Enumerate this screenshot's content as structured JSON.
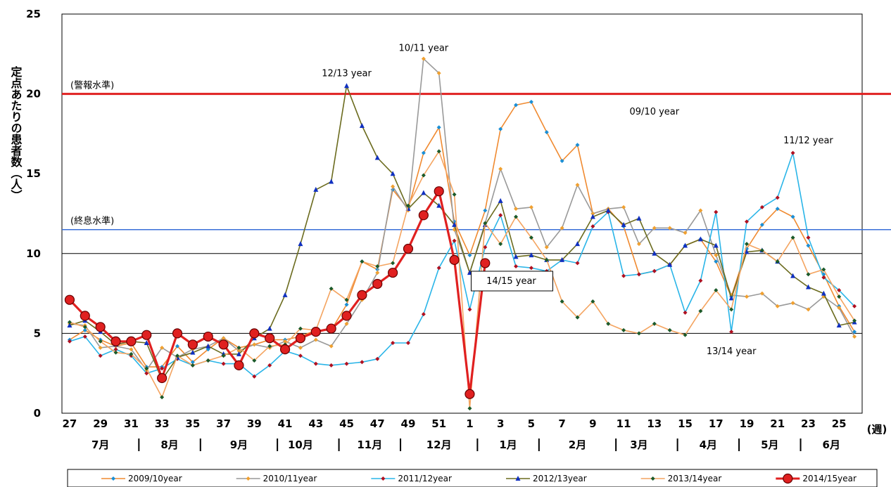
{
  "chart_data": {
    "type": "line",
    "title": "",
    "ylabel": "定点あたりの患者数（人）",
    "x_unit_label": "(週)",
    "ylim": [
      0,
      25
    ],
    "y_ticks": [
      "0",
      "5",
      "10",
      "15",
      "20",
      "25"
    ],
    "x_tick_labels": [
      "27",
      "29",
      "31",
      "33",
      "35",
      "37",
      "39",
      "41",
      "43",
      "45",
      "47",
      "49",
      "51",
      "1",
      "3",
      "5",
      "7",
      "9",
      "11",
      "13",
      "15",
      "17",
      "19",
      "21",
      "23",
      "25"
    ],
    "months": [
      "7月",
      "8月",
      "9月",
      "10月",
      "11月",
      "12月",
      "1月",
      "2月",
      "3月",
      "4月",
      "5月",
      "6月"
    ],
    "reference_lines": [
      {
        "label": "(警報水準)",
        "value": 20,
        "color": "#e02020"
      },
      {
        "label": "(終息水準)",
        "value": 11.5,
        "color": "#3a6fd8"
      }
    ],
    "weeks": [
      "27",
      "28",
      "29",
      "30",
      "31",
      "32",
      "33",
      "34",
      "35",
      "36",
      "37",
      "38",
      "39",
      "40",
      "41",
      "42",
      "43",
      "44",
      "45",
      "46",
      "47",
      "48",
      "49",
      "50",
      "51",
      "52",
      "1",
      "2",
      "3",
      "4",
      "5",
      "6",
      "7",
      "8",
      "9",
      "10",
      "11",
      "12",
      "13",
      "14",
      "15",
      "16",
      "17",
      "18",
      "19",
      "20",
      "21",
      "22",
      "23",
      "24",
      "25",
      "26"
    ],
    "series": [
      {
        "name": "2009/10year",
        "color": "#f08a30",
        "marker": "diamond",
        "values": [
          4.6,
          5.2,
          4.6,
          4.2,
          4.4,
          2.9,
          2.9,
          4.2,
          3.2,
          4.0,
          4.7,
          4.1,
          4.3,
          4.6,
          4.6,
          4.8,
          5.2,
          5.2,
          6.8,
          9.5,
          9.0,
          14.0,
          12.8,
          16.3,
          17.9,
          12.0,
          9.9,
          12.7,
          17.8,
          19.3,
          19.5,
          17.6,
          15.8,
          16.8,
          12.5,
          12.8,
          11.7,
          8.7,
          8.9,
          9.3,
          10.5,
          10.9,
          9.5,
          7.3,
          10.3,
          11.8,
          12.8,
          12.3,
          10.5,
          8.7,
          6.7,
          5.1
        ]
      },
      {
        "name": "2010/11year",
        "color": "#999999",
        "marker": "diamond",
        "values": [
          5.6,
          5.5,
          4.1,
          4.2,
          4.0,
          2.7,
          4.1,
          3.5,
          4.0,
          4.2,
          4.7,
          3.9,
          4.3,
          4.1,
          4.5,
          4.1,
          4.6,
          4.2,
          5.6,
          7.1,
          8.8,
          14.2,
          12.7,
          22.2,
          21.3,
          11.5,
          8.8,
          11.9,
          15.3,
          12.8,
          12.9,
          10.4,
          11.6,
          14.3,
          12.5,
          12.8,
          12.9,
          10.6,
          11.6,
          11.6,
          11.3,
          12.7,
          9.9,
          7.4,
          7.3,
          7.5,
          6.7,
          6.9,
          6.5,
          7.3,
          6.6,
          4.8
        ]
      },
      {
        "name": "2011/12year",
        "color": "#2ab5e8",
        "marker": "diamond",
        "values": [
          4.5,
          4.8,
          3.6,
          4.0,
          3.6,
          2.5,
          2.8,
          3.4,
          3.0,
          3.3,
          3.1,
          3.1,
          2.3,
          3.0,
          3.9,
          3.6,
          3.1,
          3.0,
          3.1,
          3.2,
          3.4,
          4.4,
          4.4,
          6.2,
          9.1,
          10.8,
          6.5,
          10.4,
          12.4,
          9.2,
          9.1,
          8.9,
          9.6,
          9.4,
          11.7,
          12.6,
          8.6,
          8.7,
          8.9,
          9.3,
          6.3,
          8.3,
          12.6,
          5.1,
          12.0,
          12.9,
          13.5,
          16.3,
          11.0,
          8.5,
          7.7,
          6.7
        ]
      },
      {
        "name": "2012/13year",
        "color": "#6b6b1e",
        "marker": "triangle",
        "values": [
          5.5,
          5.8,
          5.1,
          4.3,
          4.5,
          4.4,
          2.1,
          3.5,
          3.8,
          4.2,
          3.7,
          3.7,
          4.7,
          5.3,
          7.4,
          10.6,
          14.0,
          14.5,
          20.5,
          18.0,
          16.0,
          15.0,
          12.8,
          13.8,
          13.0,
          11.8,
          8.8,
          11.8,
          13.3,
          9.8,
          9.9,
          9.6,
          9.6,
          10.6,
          12.3,
          12.7,
          11.8,
          12.2,
          10.0,
          9.3,
          10.5,
          10.9,
          10.5,
          7.2,
          10.1,
          10.2,
          9.5,
          8.6,
          7.9,
          7.5,
          5.5,
          5.7
        ]
      },
      {
        "name": "2013/14year",
        "color": "#f4a460",
        "marker": "diamond",
        "values": [
          5.7,
          5.4,
          4.5,
          3.8,
          3.7,
          2.8,
          1.0,
          3.6,
          3.0,
          3.3,
          3.6,
          4.1,
          3.3,
          4.2,
          4.3,
          5.3,
          5.2,
          7.8,
          7.1,
          9.5,
          9.2,
          9.4,
          13.0,
          14.9,
          16.4,
          13.7,
          0.3,
          11.9,
          10.6,
          12.3,
          11.0,
          9.6,
          7.0,
          6.0,
          7.0,
          5.6,
          5.2,
          5.0,
          5.6,
          5.2,
          4.9,
          6.4,
          7.7,
          6.5,
          10.6,
          10.2,
          9.5,
          11.0,
          8.7,
          9.0,
          7.3,
          5.8
        ]
      },
      {
        "name": "2014/15year",
        "color": "#e02020",
        "marker": "circle",
        "values": [
          7.1,
          6.1,
          5.4,
          4.5,
          4.5,
          4.9,
          2.2,
          5.0,
          4.3,
          4.8,
          4.3,
          3.0,
          5.0,
          4.7,
          4.0,
          4.7,
          5.1,
          5.3,
          6.1,
          7.4,
          8.1,
          8.8,
          10.3,
          12.4,
          13.9,
          9.6,
          1.2,
          9.4,
          null,
          null,
          null,
          null,
          null,
          null,
          null,
          null,
          null,
          null,
          null,
          null,
          null,
          null,
          null,
          null,
          null,
          null,
          null,
          null,
          null,
          null,
          null,
          null
        ]
      }
    ],
    "annotations": [
      {
        "text": "10/11 year"
      },
      {
        "text": "12/13 year"
      },
      {
        "text": "09/10 year"
      },
      {
        "text": "11/12 year"
      },
      {
        "text": "14/15 year"
      },
      {
        "text": "13/14 year"
      }
    ]
  }
}
